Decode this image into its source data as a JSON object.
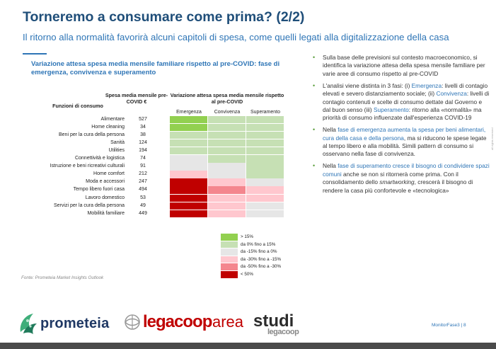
{
  "slide": {
    "title": "Torneremo a consumare come prima? (2/2)",
    "subtitle": "Il ritorno alla normalità favorirà alcuni capitoli di spesa, come quelli legati alla digitalizzazione della casa",
    "chart_title": "Variazione attesa spesa media mensile familiare rispetto al pre-COVID: fase di emergenza, convivenza e superamento",
    "source": "Fonte: Prometeia Market Insights Outlook",
    "side_text": "all rights reserved",
    "footer": "MonitorFase3 | 8"
  },
  "table": {
    "col_func": "Funzioni di consumo",
    "col_spesa": "Spesa media mensile pre-COVID €",
    "col_var": "Variazione attesa spesa media mensile rispetto al pre-COVID",
    "phases": [
      "Emergenza",
      "Convivenza",
      "Superamento"
    ],
    "rows": [
      {
        "label": "Alimentare",
        "value": "527",
        "cells": [
          "g1",
          "g2",
          "g2"
        ]
      },
      {
        "label": "Home cleaning",
        "value": "34",
        "cells": [
          "g1",
          "g2",
          "g2"
        ]
      },
      {
        "label": "Beni per la cura della persona",
        "value": "38",
        "cells": [
          "g2",
          "g2",
          "g2"
        ]
      },
      {
        "label": "Sanità",
        "value": "124",
        "cells": [
          "g2",
          "g2",
          "g2"
        ]
      },
      {
        "label": "Utilities",
        "value": "194",
        "cells": [
          "g2",
          "g2",
          "g2"
        ]
      },
      {
        "label": "Connettività e logistica",
        "value": "74",
        "cells": [
          "n",
          "g2",
          "g2"
        ]
      },
      {
        "label": "Istruzione e beni ricreativi culturali",
        "value": "91",
        "cells": [
          "n",
          "n",
          "g2"
        ]
      },
      {
        "label": "Home comfort",
        "value": "212",
        "cells": [
          "r1",
          "n",
          "g2"
        ]
      },
      {
        "label": "Moda e accessori",
        "value": "247",
        "cells": [
          "r3",
          "r1",
          "n"
        ]
      },
      {
        "label": "Tempo libero fuori casa",
        "value": "494",
        "cells": [
          "r3",
          "r2",
          "r1"
        ]
      },
      {
        "label": "Lavoro domestico",
        "value": "53",
        "cells": [
          "r3",
          "r1",
          "r1"
        ]
      },
      {
        "label": "Servizi per la cura della persona",
        "value": "49",
        "cells": [
          "r3",
          "r1",
          "n"
        ]
      },
      {
        "label": "Mobilità familiare",
        "value": "449",
        "cells": [
          "r3",
          "r1",
          "n"
        ]
      }
    ]
  },
  "colors": {
    "g1": "#92d050",
    "g2": "#c6e0b4",
    "n": "#e6e6e6",
    "r1": "#ffc7ce",
    "r2": "#f4868e",
    "r3": "#c00000"
  },
  "legend": [
    {
      "key": "g1",
      "label": "> 15%"
    },
    {
      "key": "g2",
      "label": "da 0% fino a 15%"
    },
    {
      "key": "n",
      "label": "da -15% fino a 0%"
    },
    {
      "key": "r1",
      "label": "da -30% fino a -15%"
    },
    {
      "key": "r2",
      "label": "da -50% fino a -30%"
    },
    {
      "key": "r3",
      "label": "< 50%"
    }
  ],
  "bullets": {
    "b1": "Sulla base delle previsioni sul contesto macroeconomico, si identifica la variazione attesa della spesa mensile familiare per varie aree di consumo rispetto al pre-COVID",
    "b2": {
      "t1": "L'analisi viene distinta in 3 fasi: (i) ",
      "h1": "Emergenza",
      "t2": ": livelli di contagio elevati e severo distanziamento sociale; (ii) ",
      "h2": "Convivenza",
      "t3": ": livelli di contagio contenuti e scelte di consumo dettate dal Governo e dal buon senso (iii) ",
      "h3": "Superamento",
      "t4": ": ritorno alla «normalità» ma priorità di consumo influenzate dall'esperienza COVID-19"
    },
    "b3": {
      "t1": "Nella ",
      "h1": "fase di emergenza aumenta la spesa per beni alimentari, cura della casa e della persona",
      "t2": ", ma si riducono le spese legate al tempo libero e alla mobilità. Simili pattern di consumo si osservano nella fase di convivenza."
    },
    "b4": {
      "t1": "Nella ",
      "h1": "fase di superamento cresce il bisogno di condividere spazi comuni",
      "t2": " anche se non si ritornerà come prima. Con il consolidamento dello ",
      "i1": "smartworking",
      "t3": ", crescerà il bisogno di rendere la casa più confortevole e «tecnologica»"
    }
  },
  "logos": {
    "prometeia": "prometeia",
    "legacoop": "legacoop",
    "area": "area",
    "studi": "studi",
    "studi_sub": "legacoop"
  }
}
